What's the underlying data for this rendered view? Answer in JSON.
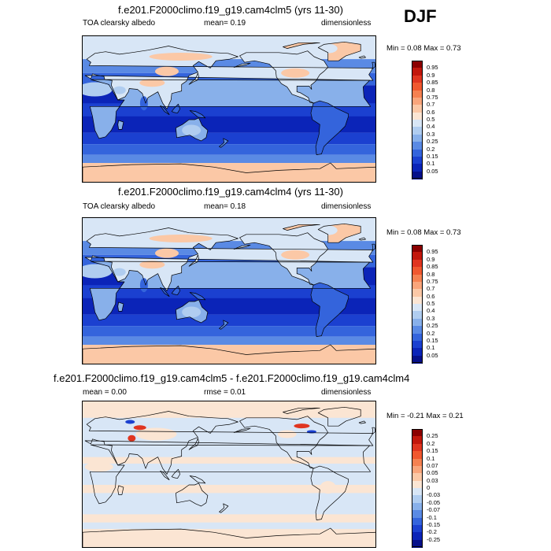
{
  "season": "DJF",
  "panels": [
    {
      "id": "p1",
      "title": "f.e201.F2000climo.f19_g19.cam4clm5 (yrs 11-30)",
      "left_label": "TOA clearsky albedo",
      "mid_label": "mean=  0.19",
      "right_label": "dimensionless",
      "minmax": "Min =  0.08 Max =  0.73",
      "type": "abs"
    },
    {
      "id": "p2",
      "title": "f.e201.F2000climo.f19_g19.cam4clm4 (yrs 11-30)",
      "left_label": "TOA clearsky albedo",
      "mid_label": "mean=  0.18",
      "right_label": "dimensionless",
      "minmax": "Min =  0.08 Max =  0.73",
      "type": "abs"
    },
    {
      "id": "p3",
      "title": "f.e201.F2000climo.f19_g19.cam4clm5 - f.e201.F2000climo.f19_g19.cam4clm4",
      "left_label": "mean =  0.00",
      "mid_label": "rmse =  0.01",
      "right_label": "dimensionless",
      "minmax": "Min =  -0.21 Max =  0.21",
      "type": "diff"
    }
  ],
  "colorbar_abs": {
    "labels": [
      "0.95",
      "0.9",
      "0.85",
      "0.8",
      "0.75",
      "0.7",
      "0.6",
      "0.5",
      "0.4",
      "0.3",
      "0.25",
      "0.2",
      "0.15",
      "0.1",
      "0.05"
    ],
    "colors": [
      "#8b0000",
      "#c2170c",
      "#e03520",
      "#f0582f",
      "#f58151",
      "#f9a57b",
      "#fbc8a6",
      "#fbe5d3",
      "#d8e6f6",
      "#b0cdf0",
      "#88b0ea",
      "#5a8ae4",
      "#3464dc",
      "#1b40d0",
      "#0b24b8",
      "#06108a"
    ]
  },
  "colorbar_diff": {
    "labels": [
      "0.25",
      "0.2",
      "0.15",
      "0.1",
      "0.07",
      "0.05",
      "0.03",
      "0",
      "-0.03",
      "-0.05",
      "-0.07",
      "-0.1",
      "-0.15",
      "-0.2",
      "-0.25"
    ],
    "colors": [
      "#8b0000",
      "#c2170c",
      "#e03520",
      "#f0582f",
      "#f58151",
      "#f9a57b",
      "#fbc8a6",
      "#fbe5d3",
      "#d8e6f6",
      "#b0cdf0",
      "#88b0ea",
      "#5a8ae4",
      "#3464dc",
      "#1b40d0",
      "#0b24b8",
      "#06108a"
    ]
  },
  "map_colors": {
    "ocean_deep": "#0b24b8",
    "ocean_mid": "#1b40d0",
    "ocean_light": "#3464dc",
    "storm_track": "#5a8ae4",
    "snow": "#d8e6f6",
    "ice": "#fbc8a6",
    "land_dark": "#88b0ea",
    "desert": "#b0cdf0",
    "diff_bg": "#d8e6f6",
    "diff_pos": "#fbe5d3",
    "diff_hot": "#e03520",
    "diff_cold": "#1b40d0"
  }
}
